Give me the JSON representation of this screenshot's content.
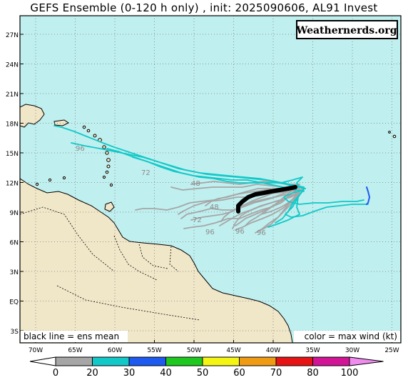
{
  "title": "GEFS Ensemble (0-120 h only) , init: 2025090606, AL91 Invest",
  "watermark": "Weathernerds.org",
  "footer_left": "black line = ens mean",
  "footer_right": "color = max wind (kt)",
  "lat_labels": [
    "27N",
    "24N",
    "21N",
    "18N",
    "15N",
    "12N",
    "9N",
    "6N",
    "3N",
    "EQ",
    "3S"
  ],
  "lon_labels": [
    "70W",
    "65W",
    "60W",
    "55W",
    "50W",
    "45W",
    "40W",
    "35W",
    "30W",
    "25W"
  ],
  "track_hour_labels": [
    "96",
    "72",
    "48",
    "48",
    "72",
    "96",
    "96",
    "96"
  ],
  "colorbar": {
    "ticks": [
      "0",
      "20",
      "30",
      "40",
      "50",
      "60",
      "70",
      "80",
      "100"
    ],
    "colors": [
      "#a6a6a6",
      "#13c8c8",
      "#1e5af0",
      "#1ec81e",
      "#f5f514",
      "#f09b14",
      "#e61414",
      "#d21496",
      "#f08cf0"
    ]
  },
  "colors": {
    "ocean": "#bfefef",
    "land": "#f0e6c8",
    "coast": "#000000",
    "mean_track": "#000000",
    "weak_track": "#a6a6a6",
    "ts_track": "#13c8c8",
    "strong_track": "#1e5af0"
  }
}
